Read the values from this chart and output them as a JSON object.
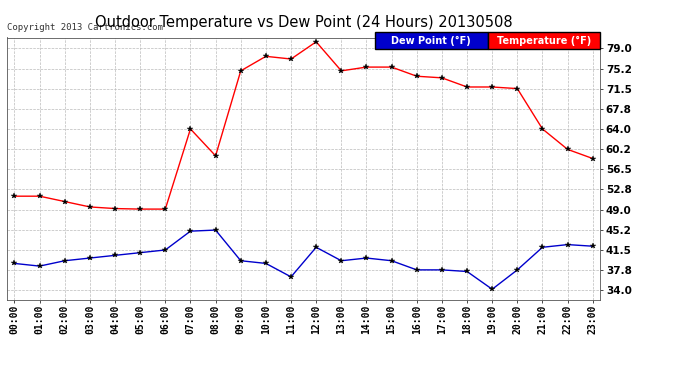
{
  "title": "Outdoor Temperature vs Dew Point (24 Hours) 20130508",
  "copyright": "Copyright 2013 Cartronics.com",
  "x_labels": [
    "00:00",
    "01:00",
    "02:00",
    "03:00",
    "04:00",
    "05:00",
    "06:00",
    "07:00",
    "08:00",
    "09:00",
    "10:00",
    "11:00",
    "12:00",
    "13:00",
    "14:00",
    "15:00",
    "16:00",
    "17:00",
    "18:00",
    "19:00",
    "20:00",
    "21:00",
    "22:00",
    "23:00"
  ],
  "temperature": [
    51.5,
    51.5,
    50.5,
    49.5,
    49.2,
    49.1,
    49.1,
    64.0,
    59.0,
    74.8,
    77.5,
    77.0,
    80.2,
    74.8,
    75.5,
    75.5,
    73.8,
    73.5,
    71.8,
    71.8,
    71.5,
    64.0,
    60.2,
    58.5
  ],
  "dew_point": [
    39.0,
    38.5,
    39.5,
    40.0,
    40.5,
    41.0,
    41.5,
    45.0,
    45.2,
    39.5,
    39.0,
    36.5,
    42.0,
    39.5,
    40.0,
    39.5,
    37.8,
    37.8,
    37.5,
    34.2,
    37.8,
    42.0,
    42.5,
    42.2
  ],
  "temp_color": "#ff0000",
  "dew_color": "#0000cc",
  "background_color": "#ffffff",
  "grid_color": "#bbbbbb",
  "y_ticks": [
    34.0,
    37.8,
    41.5,
    45.2,
    49.0,
    52.8,
    56.5,
    60.2,
    64.0,
    67.8,
    71.5,
    75.2,
    79.0
  ],
  "y_min": 32.2,
  "y_max": 81.0,
  "legend_dew_label": "Dew Point (°F)",
  "legend_temp_label": "Temperature (°F)"
}
